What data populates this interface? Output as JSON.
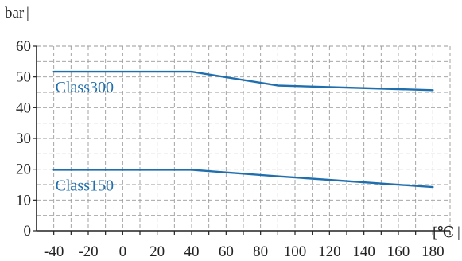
{
  "chart_data": {
    "type": "line",
    "ylabel": "bar",
    "xlabel": "℃",
    "x_ticks": [
      -40,
      -20,
      0,
      20,
      40,
      60,
      80,
      100,
      120,
      140,
      160,
      180
    ],
    "y_ticks": [
      0,
      10,
      20,
      30,
      40,
      50,
      60
    ],
    "xlim": [
      -50,
      190
    ],
    "ylim": [
      0,
      60
    ],
    "grid": true,
    "series": [
      {
        "name": "Class300",
        "x": [
          -40,
          40,
          90,
          180
        ],
        "y": [
          51.7,
          51.7,
          47.2,
          45.7
        ],
        "color": "#1f6fae"
      },
      {
        "name": "Class150",
        "x": [
          -40,
          40,
          90,
          180
        ],
        "y": [
          19.8,
          19.8,
          17.7,
          14.2
        ],
        "color": "#1f6fae"
      }
    ]
  }
}
